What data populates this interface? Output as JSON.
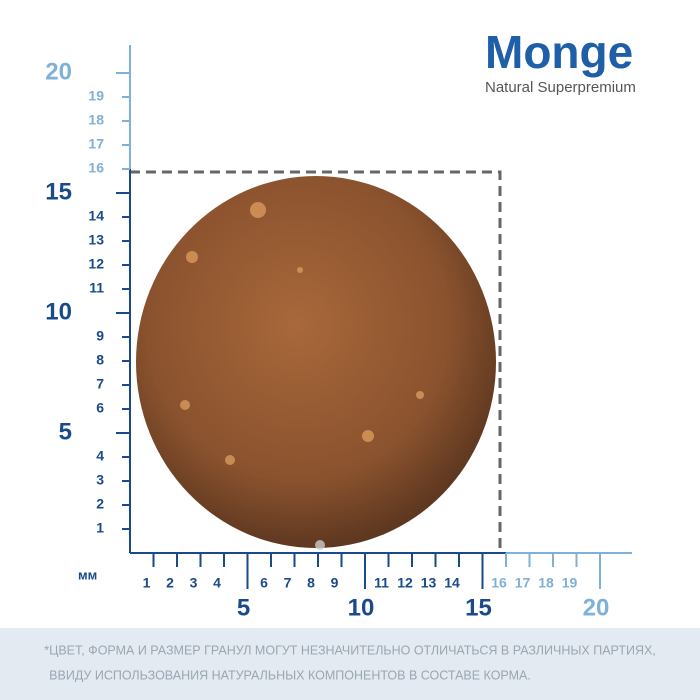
{
  "brand": {
    "name": "Monge",
    "tagline": "Natural Superpremium"
  },
  "ruler": {
    "unit": "мм",
    "y_labels": [
      1,
      2,
      3,
      4,
      5,
      6,
      7,
      8,
      9,
      10,
      11,
      12,
      13,
      14,
      15,
      16,
      17,
      18,
      19,
      20
    ],
    "x_labels": [
      1,
      2,
      3,
      4,
      5,
      6,
      7,
      8,
      9,
      10,
      11,
      12,
      13,
      14,
      15,
      16,
      17,
      18,
      19,
      20
    ]
  },
  "footnote": {
    "lines": [
      "*ЦВЕТ, ФОРМА И РАЗМЕР ГРАНУЛ МОГУТ НЕЗНАЧИТЕЛЬНО ОТЛИЧАТЬСЯ В РАЗЛИЧНЫХ ПАРТИЯХ,",
      "ВВИДУ ИСПОЛЬЗОВАНИЯ НАТУРАЛЬНЫХ КОМПОНЕНТОВ В СОСТАВЕ КОРМА."
    ]
  }
}
